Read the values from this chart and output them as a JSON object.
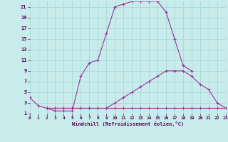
{
  "bg_color": "#c8ecec",
  "grid_color": "#a8d8d8",
  "line_color": "#993399",
  "xlabel": "Windchill (Refroidissement éolien,°C)",
  "xlim": [
    0,
    23
  ],
  "ylim": [
    1,
    22
  ],
  "xticks": [
    0,
    1,
    2,
    3,
    4,
    5,
    6,
    7,
    8,
    9,
    10,
    11,
    12,
    13,
    14,
    15,
    16,
    17,
    18,
    19,
    20,
    21,
    22,
    23
  ],
  "yticks": [
    1,
    3,
    5,
    7,
    9,
    11,
    13,
    15,
    17,
    19,
    21
  ],
  "curve1_x": [
    0,
    1,
    2,
    3,
    4,
    5,
    6,
    7,
    8,
    9,
    10,
    11,
    12,
    13,
    14,
    15,
    16,
    17,
    18,
    19
  ],
  "curve1_y": [
    4,
    2.5,
    2,
    1.5,
    1.5,
    1.5,
    8,
    10.5,
    11,
    16,
    21,
    21.5,
    22,
    22,
    22,
    22,
    20,
    15,
    10,
    9
  ],
  "curve2_x": [
    2,
    3,
    4,
    5,
    6,
    7,
    8,
    9,
    10,
    11,
    12,
    13,
    14,
    15,
    16,
    17,
    18,
    19,
    20,
    21,
    22,
    23
  ],
  "curve2_y": [
    2,
    2,
    2,
    2,
    2,
    2,
    2,
    2,
    3,
    4,
    5,
    6,
    7,
    8,
    9,
    9,
    9,
    8,
    6.5,
    5.5,
    3,
    2
  ],
  "curve3_x": [
    2,
    3,
    4,
    5,
    6,
    7,
    8,
    9,
    10,
    11,
    12,
    13,
    14,
    15,
    16,
    17,
    18,
    19,
    20,
    21,
    22,
    23
  ],
  "curve3_y": [
    2,
    2,
    2,
    2,
    2,
    2,
    2,
    2,
    2,
    2,
    2,
    2,
    2,
    2,
    2,
    2,
    2,
    2,
    2,
    2,
    2,
    2
  ]
}
